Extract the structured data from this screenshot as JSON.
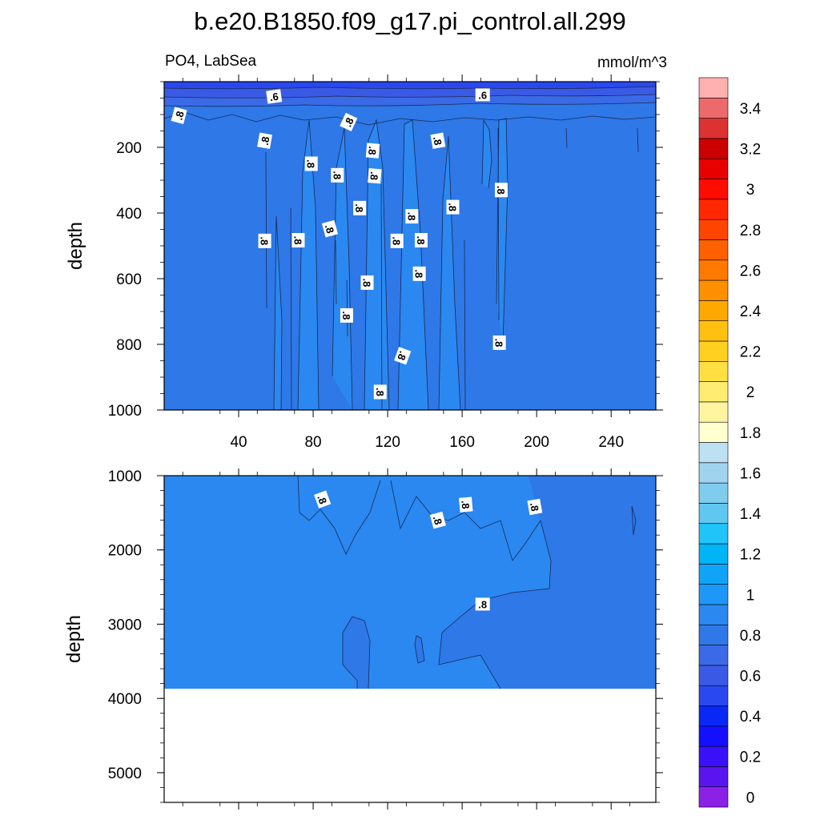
{
  "chart_data": {
    "type": "contour",
    "title": "b.e20.B1850.f09_g17.pi_control.all.299",
    "variable": "PO4, LabSea",
    "units": "mmol/m^3",
    "colorbar": {
      "levels": [
        0,
        0.1,
        0.2,
        0.3,
        0.4,
        0.5,
        0.6,
        0.7,
        0.8,
        0.9,
        1.0,
        1.1,
        1.2,
        1.3,
        1.4,
        1.5,
        1.6,
        1.7,
        1.8,
        1.9,
        2.0,
        2.1,
        2.2,
        2.3,
        2.4,
        2.5,
        2.6,
        2.7,
        2.8,
        2.9,
        3.0,
        3.1,
        3.2,
        3.3,
        3.4,
        3.5
      ],
      "labels": [
        "0",
        "0.2",
        "0.4",
        "0.6",
        "0.8",
        "1",
        "1.2",
        "1.4",
        "1.6",
        "1.8",
        "2",
        "2.2",
        "2.4",
        "2.6",
        "2.8",
        "3",
        "3.2",
        "3.4"
      ],
      "colors": [
        "#8b20e6",
        "#5a14f0",
        "#3a10f8",
        "#1410ff",
        "#0a28f5",
        "#2a48f0",
        "#3a5ae6",
        "#3a6ae6",
        "#2e78e8",
        "#2a88f0",
        "#1e98f8",
        "#10a4f8",
        "#00b4f6",
        "#20c4f8",
        "#60c8f0",
        "#80ccee",
        "#a0d4ee",
        "#bde0f2",
        "#ffffd0",
        "#fff4a0",
        "#ffec70",
        "#ffe040",
        "#ffd020",
        "#ffc010",
        "#ffa800",
        "#ff9000",
        "#ff7800",
        "#ff6000",
        "#ff4400",
        "#ff2800",
        "#ff0c00",
        "#e80000",
        "#cc0000",
        "#dc3232",
        "#ec6a6a",
        "#ffb0b0"
      ]
    },
    "panels": [
      {
        "name": "upper",
        "ylabel": "depth",
        "ylim": [
          1000,
          0
        ],
        "xlim": [
          0,
          264
        ],
        "xticks": [
          40,
          80,
          120,
          160,
          200,
          240
        ],
        "xtick_labels": [
          "40",
          "80",
          "120",
          "160",
          "200",
          "240"
        ],
        "yticks": [
          200,
          400,
          600,
          800,
          1000
        ],
        "ytick_labels": [
          "200",
          "400",
          "600",
          "800",
          "1000"
        ],
        "contour_labels": [
          {
            "text": ".6",
            "x": 59,
            "y": 45,
            "rot": -8
          },
          {
            "text": ".6",
            "x": 171,
            "y": 40,
            "rot": 0
          },
          {
            "text": ".8",
            "x": 8,
            "y": 103,
            "rot": -75
          },
          {
            "text": ".8",
            "x": 99,
            "y": 123,
            "rot": -65
          },
          {
            "text": ".8",
            "x": 54,
            "y": 180,
            "rot": -80
          },
          {
            "text": ".8",
            "x": 147,
            "y": 180,
            "rot": 80
          },
          {
            "text": ".8",
            "x": 112,
            "y": 210,
            "rot": 95
          },
          {
            "text": ".8",
            "x": 79,
            "y": 250,
            "rot": 90
          },
          {
            "text": ".8",
            "x": 93,
            "y": 285,
            "rot": 90
          },
          {
            "text": ".8",
            "x": 113,
            "y": 287,
            "rot": 95
          },
          {
            "text": ".8",
            "x": 181,
            "y": 330,
            "rot": 90
          },
          {
            "text": ".8",
            "x": 105,
            "y": 385,
            "rot": 90
          },
          {
            "text": ".8",
            "x": 155,
            "y": 382,
            "rot": 90
          },
          {
            "text": ".8",
            "x": 133,
            "y": 410,
            "rot": 90
          },
          {
            "text": ".8",
            "x": 89,
            "y": 448,
            "rot": 75
          },
          {
            "text": ".8",
            "x": 54,
            "y": 485,
            "rot": 90
          },
          {
            "text": ".8",
            "x": 72,
            "y": 483,
            "rot": 90
          },
          {
            "text": ".8",
            "x": 125,
            "y": 485,
            "rot": 90
          },
          {
            "text": ".8",
            "x": 138,
            "y": 483,
            "rot": 90
          },
          {
            "text": ".8",
            "x": 137,
            "y": 585,
            "rot": 90
          },
          {
            "text": ".8",
            "x": 109,
            "y": 612,
            "rot": 90
          },
          {
            "text": ".8",
            "x": 98,
            "y": 712,
            "rot": 90
          },
          {
            "text": ".8",
            "x": 180,
            "y": 795,
            "rot": 90
          },
          {
            "text": ".8",
            "x": 128,
            "y": 835,
            "rot": 110
          },
          {
            "text": ".8",
            "x": 116,
            "y": 945,
            "rot": 90
          }
        ]
      },
      {
        "name": "lower",
        "ylabel": "depth",
        "ylim": [
          5400,
          1000
        ],
        "xlim": [
          0,
          264
        ],
        "yticks": [
          1000,
          2000,
          3000,
          4000,
          5000
        ],
        "ytick_labels": [
          "1000",
          "2000",
          "3000",
          "4000",
          "5000"
        ],
        "ocean_bottom": 3870,
        "contour_labels": [
          {
            "text": ".8",
            "x": 85,
            "y": 1320,
            "rot": 70
          },
          {
            "text": ".8",
            "x": 147,
            "y": 1600,
            "rot": 75
          },
          {
            "text": ".8",
            "x": 162,
            "y": 1390,
            "rot": 85
          },
          {
            "text": ".8",
            "x": 199,
            "y": 1420,
            "rot": 80
          },
          {
            "text": ".8",
            "x": 171,
            "y": 2730,
            "rot": 0
          }
        ]
      }
    ]
  }
}
